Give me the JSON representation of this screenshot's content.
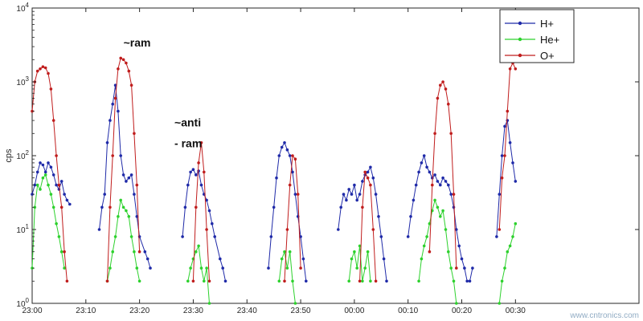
{
  "chart_data": {
    "type": "line",
    "ylabel": "cps",
    "xlabel": "",
    "yscale": "log",
    "ylim": [
      1,
      10000
    ],
    "y_ticks": [
      {
        "v": 1,
        "exp": "0"
      },
      {
        "v": 10,
        "exp": "1"
      },
      {
        "v": 100,
        "exp": "2"
      },
      {
        "v": 1000,
        "exp": "3"
      },
      {
        "v": 10000,
        "exp": "4"
      }
    ],
    "xlim": [
      0,
      113
    ],
    "x_ticks": [
      {
        "v": 0,
        "label": "23:00"
      },
      {
        "v": 10,
        "label": "23:10"
      },
      {
        "v": 20,
        "label": "23:20"
      },
      {
        "v": 30,
        "label": "23:30"
      },
      {
        "v": 40,
        "label": "23:40"
      },
      {
        "v": 50,
        "label": "23:50"
      },
      {
        "v": 60,
        "label": "00:00"
      },
      {
        "v": 70,
        "label": "00:10"
      },
      {
        "v": 80,
        "label": "00:20"
      },
      {
        "v": 90,
        "label": "00:30"
      }
    ],
    "grid": false,
    "legend_position": "top-right",
    "annotations": [
      {
        "text": "~ram",
        "x": 17,
        "y": 3000
      },
      {
        "text": "~anti",
        "x": 26.5,
        "y": 250
      },
      {
        "text": "- ram",
        "x": 26.5,
        "y": 130
      }
    ],
    "watermark": "www.cntronics.com",
    "series": [
      {
        "name": "H+",
        "color": "#1f2aa8",
        "x": [
          0,
          0.5,
          1,
          1.5,
          2,
          2.5,
          3,
          3.5,
          4,
          4.5,
          5,
          5.5,
          6,
          6.5,
          7,
          12.5,
          13,
          13.5,
          14,
          14.5,
          15,
          15.5,
          16,
          16.5,
          17,
          17.5,
          18,
          18.5,
          19,
          19.5,
          20,
          21,
          21.5,
          22,
          28,
          28.5,
          29,
          29.5,
          30,
          30.5,
          31,
          31.5,
          32,
          32.5,
          33,
          33.5,
          34,
          35,
          35.5,
          36,
          44,
          44.5,
          45,
          45.5,
          46,
          46.5,
          47,
          47.5,
          48,
          48.5,
          49,
          49.5,
          50,
          50.5,
          51,
          57,
          57.5,
          58,
          58.5,
          59,
          59.5,
          60,
          60.5,
          61,
          61.5,
          62,
          62.5,
          63,
          63.5,
          64,
          64.5,
          65,
          65.5,
          66,
          70,
          70.5,
          71,
          71.5,
          72,
          72.5,
          73,
          73.5,
          74,
          74.5,
          75,
          75.5,
          76,
          76.5,
          77,
          77.5,
          78,
          78.5,
          79,
          79.5,
          80,
          80.5,
          81,
          81.5,
          82,
          86.5,
          87,
          87.5,
          88,
          88.5,
          89,
          89.5,
          90
        ],
        "values": [
          30,
          40,
          60,
          80,
          75,
          60,
          80,
          70,
          55,
          40,
          35,
          45,
          30,
          25,
          22,
          10,
          20,
          30,
          150,
          300,
          500,
          900,
          400,
          100,
          55,
          45,
          50,
          55,
          30,
          15,
          8,
          5,
          4,
          3,
          8,
          20,
          40,
          60,
          65,
          55,
          62,
          40,
          30,
          25,
          18,
          12,
          8,
          4,
          3,
          2,
          3,
          8,
          20,
          50,
          100,
          130,
          150,
          120,
          100,
          60,
          30,
          15,
          8,
          4,
          2,
          10,
          20,
          30,
          25,
          35,
          30,
          40,
          25,
          30,
          45,
          55,
          60,
          70,
          50,
          30,
          15,
          8,
          4,
          2,
          8,
          15,
          25,
          40,
          60,
          80,
          100,
          70,
          60,
          50,
          55,
          45,
          40,
          50,
          45,
          40,
          30,
          20,
          10,
          6,
          4,
          3,
          2,
          2,
          3,
          8,
          30,
          100,
          250,
          300,
          150,
          80,
          45
        ]
      },
      {
        "name": "He+",
        "color": "#2dd12d",
        "x": [
          0,
          0.5,
          1,
          1.5,
          2,
          2.5,
          3,
          3.5,
          4,
          4.5,
          5,
          5.5,
          6,
          14,
          14.5,
          15,
          15.5,
          16,
          16.5,
          17,
          17.5,
          18,
          18.5,
          19,
          19.5,
          20,
          29,
          29.5,
          30,
          30.5,
          31,
          31.5,
          32,
          32.5,
          33,
          46,
          46.5,
          47,
          47.5,
          48,
          48.5,
          49,
          59,
          59.5,
          60,
          60.5,
          61,
          61.5,
          62,
          62.5,
          63,
          72,
          72.5,
          73,
          73.5,
          74,
          74.5,
          75,
          75.5,
          76,
          76.5,
          77,
          77.5,
          78,
          78.5,
          79,
          87,
          87.5,
          88,
          88.5,
          89,
          89.5,
          90
        ],
        "values": [
          3,
          20,
          40,
          35,
          50,
          55,
          40,
          30,
          20,
          12,
          8,
          5,
          3,
          2,
          3,
          5,
          8,
          15,
          25,
          20,
          18,
          15,
          8,
          5,
          3,
          2,
          2,
          3,
          4,
          5,
          6,
          3,
          2,
          3,
          1,
          2,
          4,
          5,
          3,
          5,
          2,
          1,
          2,
          4,
          5,
          3,
          6,
          2,
          3,
          5,
          2,
          2,
          4,
          6,
          8,
          12,
          18,
          25,
          20,
          15,
          18,
          10,
          5,
          3,
          2,
          1,
          1,
          2,
          3,
          5,
          6,
          8,
          12
        ]
      },
      {
        "name": "O+",
        "color": "#c01d1d",
        "x": [
          0,
          0.5,
          1,
          1.5,
          2,
          2.5,
          3,
          3.5,
          4,
          4.5,
          5,
          5.5,
          6,
          6.5,
          14,
          14.5,
          15,
          15.5,
          16,
          16.5,
          17,
          17.5,
          18,
          18.5,
          19,
          19.5,
          20,
          30,
          30.5,
          31,
          31.5,
          32,
          32.5,
          33,
          47,
          47.5,
          48,
          48.5,
          49,
          49.5,
          50,
          61,
          61.5,
          62,
          62.5,
          63,
          63.5,
          64,
          74,
          74.5,
          75,
          75.5,
          76,
          76.5,
          77,
          77.5,
          78,
          78.5,
          79,
          87,
          87.5,
          88,
          88.5,
          89,
          89.5,
          90
        ],
        "values": [
          400,
          1000,
          1400,
          1500,
          1600,
          1550,
          1300,
          800,
          300,
          100,
          40,
          20,
          5,
          2,
          2,
          20,
          100,
          600,
          1500,
          2100,
          2000,
          1800,
          1400,
          900,
          200,
          40,
          5,
          2,
          20,
          80,
          150,
          60,
          10,
          2,
          2,
          10,
          40,
          100,
          90,
          30,
          3,
          2,
          20,
          60,
          50,
          40,
          10,
          2,
          5,
          40,
          200,
          600,
          900,
          1000,
          800,
          500,
          200,
          30,
          3,
          10,
          50,
          100,
          400,
          1500,
          1800,
          1500
        ]
      }
    ]
  }
}
